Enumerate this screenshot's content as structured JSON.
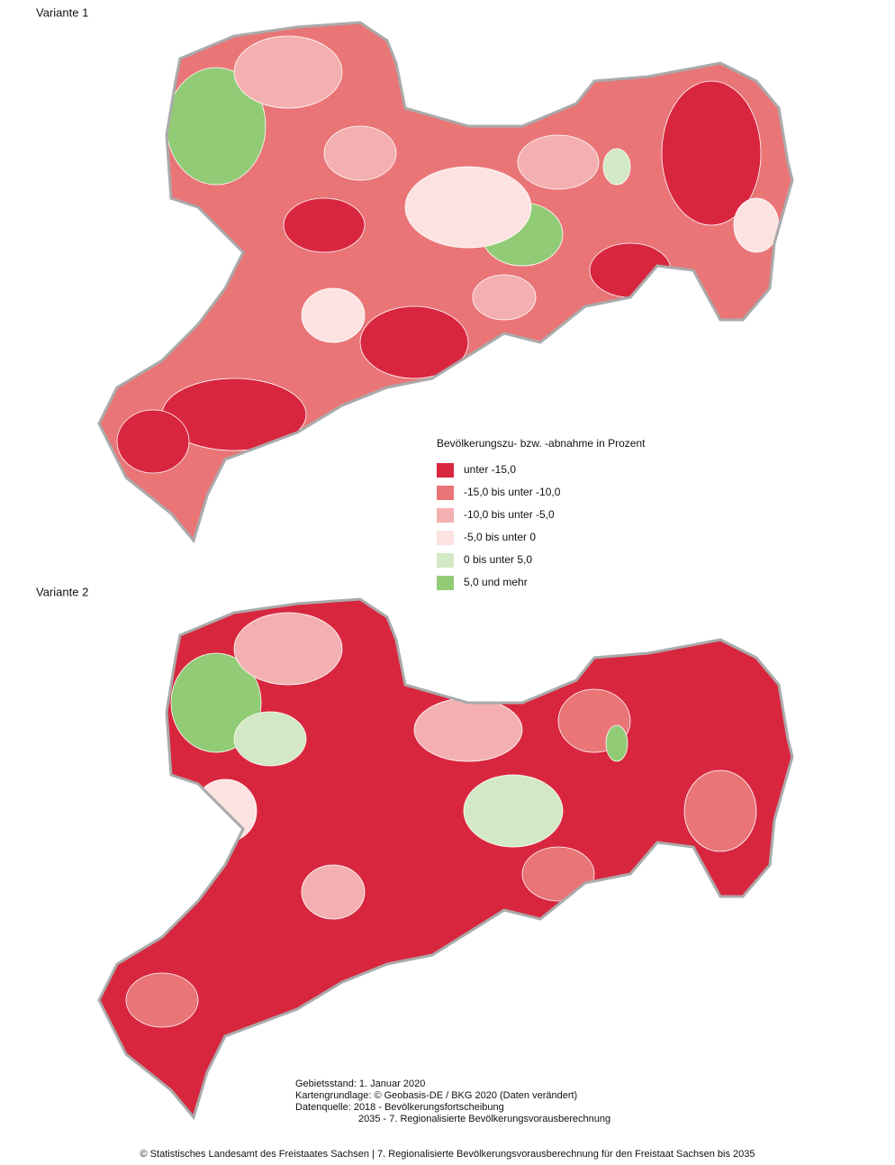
{
  "panels": [
    {
      "label": "Variante 1"
    },
    {
      "label": "Variante 2"
    }
  ],
  "legend": {
    "title": "Bevölkerungszu- bzw. -abnahme in Prozent",
    "items": [
      {
        "label": "unter -15,0",
        "color": "#d9263f"
      },
      {
        "label": "-15,0 bis unter -10,0",
        "color": "#e97577"
      },
      {
        "label": "-10,0 bis unter -5,0",
        "color": "#f4b0b1"
      },
      {
        "label": "-5,0 bis unter 0",
        "color": "#fce3e1"
      },
      {
        "label": "0 bis unter 5,0",
        "color": "#d3e8c4"
      },
      {
        "label": "5,0 und mehr",
        "color": "#92cb76"
      }
    ]
  },
  "notes": [
    "Gebietsstand: 1. Januar 2020",
    "Kartengrundlage: © Geobasis-DE / BKG 2020 (Daten verändert)",
    "Datenquelle: 2018 - Bevölkerungsfortscheibung",
    "2035 - 7. Regionalisierte Bevölkerungsvorausberechnung"
  ],
  "footer": "© Statistisches Landesamt des Freistaates Sachsen | 7. Regionalisierte Bevölkerungsvorausberechnung für den Freistaat Sachsen bis 2035"
}
